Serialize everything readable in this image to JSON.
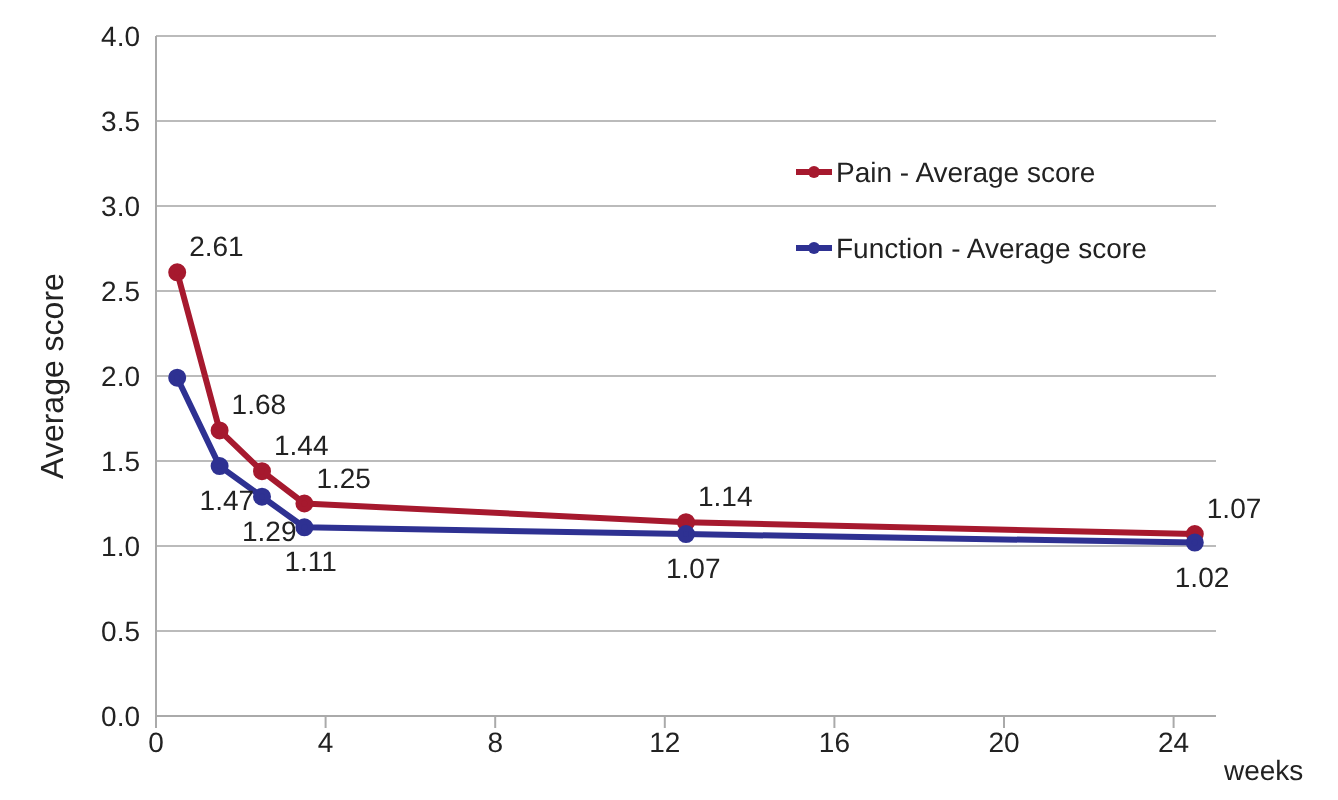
{
  "chart_data": {
    "type": "line",
    "xlabel": "weeks",
    "ylabel": "Average score",
    "x": [
      0.5,
      1.5,
      2.5,
      3.5,
      12.5,
      24.5
    ],
    "series": [
      {
        "name": "Pain - Average score",
        "color": "#a6192e",
        "values": [
          2.61,
          1.68,
          1.44,
          1.25,
          1.14,
          1.07
        ],
        "value_labels": [
          "2.61",
          "1.68",
          "1.44",
          "1.25",
          "1.14",
          "1.07"
        ]
      },
      {
        "name": "Function - Average score",
        "color": "#2e3192",
        "values": [
          1.99,
          1.47,
          1.29,
          1.11,
          1.07,
          1.02
        ],
        "value_labels": [
          null,
          "1.47",
          "1.29",
          "1.11",
          "1.07",
          "1.02"
        ]
      }
    ],
    "xlim": [
      0,
      25
    ],
    "xticks": [
      0,
      4,
      8,
      12,
      16,
      20,
      24
    ],
    "ylim": [
      0,
      4
    ],
    "yticks": [
      {
        "value": 0,
        "label": "0.0"
      },
      {
        "value": 0.5,
        "label": "0.5"
      },
      {
        "value": 1,
        "label": "1.0"
      },
      {
        "value": 1.5,
        "label": "1.5"
      },
      {
        "value": 2,
        "label": "2.0"
      },
      {
        "value": 2.5,
        "label": "2.5"
      },
      {
        "value": 3,
        "label": "3.0"
      },
      {
        "value": 3.5,
        "label": "3.5"
      },
      {
        "value": 4,
        "label": "4.0"
      }
    ],
    "grid": "y",
    "legend": "top right",
    "marker": "circle",
    "line_style": "solid"
  }
}
